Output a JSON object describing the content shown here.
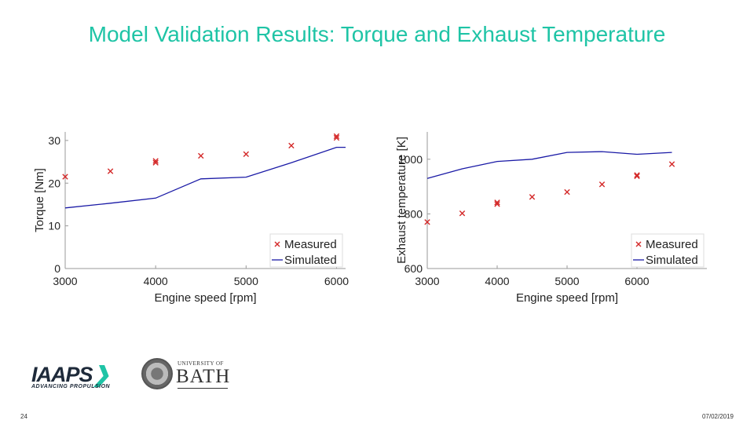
{
  "slide": {
    "title": "Model Validation Results: Torque and Exhaust Temperature",
    "page_number": "24",
    "date": "07/02/2019"
  },
  "logos": {
    "iaaps": {
      "word": "IAAPS",
      "chevron": "❯",
      "tagline": "ADVANCING PROPULSION"
    },
    "bath": {
      "university_of": "UNIVERSITY OF",
      "name": "BATH"
    }
  },
  "colors": {
    "title": "#1fc4a6",
    "measured": "#d42a2a",
    "simulated": "#1a1aa6",
    "axis": "#9a9a9a"
  },
  "chart_data": [
    {
      "type": "line",
      "title": "",
      "xlabel": "Engine speed [rpm]",
      "ylabel": "Torque [Nm]",
      "xlim": [
        3000,
        6100
      ],
      "ylim": [
        0,
        32
      ],
      "xticks": [
        3000,
        4000,
        5000,
        6000
      ],
      "yticks": [
        0,
        10,
        20,
        30
      ],
      "legend_position": "bottom-right",
      "series": [
        {
          "name": "Measured",
          "kind": "scatter",
          "x": [
            3000,
            3500,
            4000,
            4000,
            4500,
            5000,
            5500,
            6000,
            6000
          ],
          "y": [
            21.5,
            22.8,
            25.2,
            24.8,
            26.4,
            26.8,
            28.8,
            31.0,
            30.6
          ]
        },
        {
          "name": "Simulated",
          "kind": "line",
          "x": [
            3000,
            3500,
            4000,
            4500,
            5000,
            5500,
            6000,
            6100
          ],
          "y": [
            14.2,
            15.3,
            16.5,
            21.0,
            21.4,
            24.8,
            28.4,
            28.4
          ]
        }
      ]
    },
    {
      "type": "line",
      "title": "",
      "xlabel": "Engine speed [rpm]",
      "ylabel": "Exhaust temperature [K]",
      "xlim": [
        3000,
        7000
      ],
      "ylim": [
        600,
        1100
      ],
      "xticks": [
        3000,
        4000,
        5000,
        6000
      ],
      "yticks": [
        600,
        800,
        1000
      ],
      "legend_position": "bottom-right",
      "series": [
        {
          "name": "Measured",
          "kind": "scatter",
          "x": [
            3000,
            3500,
            4000,
            4000,
            4500,
            5000,
            5500,
            6000,
            6000,
            6500
          ],
          "y": [
            770,
            802,
            842,
            836,
            862,
            880,
            908,
            942,
            938,
            982
          ]
        },
        {
          "name": "Simulated",
          "kind": "line",
          "x": [
            3000,
            3500,
            4000,
            4500,
            5000,
            5500,
            6000,
            6500
          ],
          "y": [
            930,
            965,
            992,
            1000,
            1025,
            1028,
            1018,
            1025
          ]
        }
      ]
    }
  ]
}
